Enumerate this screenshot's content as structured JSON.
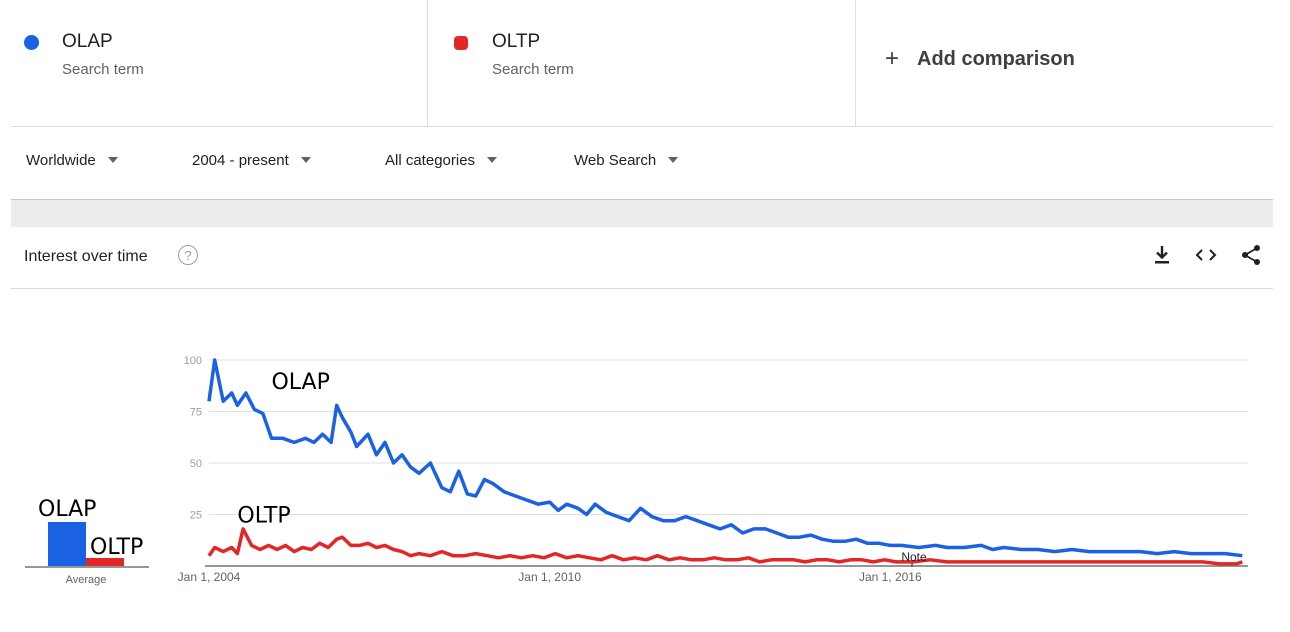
{
  "terms": [
    {
      "name": "OLAP",
      "sub": "Search term",
      "color": "#1a62e3"
    },
    {
      "name": "OLTP",
      "sub": "Search term",
      "color": "#e32626"
    }
  ],
  "add_comparison": "Add comparison",
  "filters": {
    "region": "Worldwide",
    "time": "2004 - present",
    "category": "All categories",
    "property": "Web Search"
  },
  "section": {
    "title": "Interest over time",
    "help_icon": "help-icon",
    "download_icon": "download-icon",
    "embed_icon": "embed-icon",
    "share_icon": "share-icon"
  },
  "averages": {
    "label": "Average",
    "olap_label": "OLAP",
    "oltp_label": "OLTP",
    "olap": 22,
    "oltp": 4
  },
  "chart_data": {
    "type": "line",
    "x_ticks": [
      "Jan 1, 2004",
      "Jan 1, 2010",
      "Jan 1, 2016"
    ],
    "y_ticks": [
      25,
      50,
      75,
      100
    ],
    "ylim": [
      0,
      100
    ],
    "xlim": [
      2004.0,
      2022.3
    ],
    "grid": true,
    "note": "Note",
    "annotations": [
      {
        "text": "OLAP",
        "x": 2005.1,
        "y": 86
      },
      {
        "text": "OLTP",
        "x": 2004.5,
        "y": 21
      }
    ],
    "series": [
      {
        "name": "OLAP",
        "color": "#1a62e3",
        "points": [
          [
            2004.0,
            80
          ],
          [
            2004.1,
            100
          ],
          [
            2004.25,
            80
          ],
          [
            2004.4,
            84
          ],
          [
            2004.5,
            78
          ],
          [
            2004.65,
            84
          ],
          [
            2004.8,
            76
          ],
          [
            2004.95,
            74
          ],
          [
            2005.1,
            62
          ],
          [
            2005.3,
            62
          ],
          [
            2005.5,
            60
          ],
          [
            2005.7,
            62
          ],
          [
            2005.85,
            60
          ],
          [
            2006.0,
            64
          ],
          [
            2006.15,
            60
          ],
          [
            2006.25,
            78
          ],
          [
            2006.35,
            72
          ],
          [
            2006.5,
            65
          ],
          [
            2006.6,
            58
          ],
          [
            2006.8,
            64
          ],
          [
            2006.95,
            54
          ],
          [
            2007.1,
            60
          ],
          [
            2007.25,
            50
          ],
          [
            2007.4,
            54
          ],
          [
            2007.55,
            48
          ],
          [
            2007.7,
            45
          ],
          [
            2007.9,
            50
          ],
          [
            2008.1,
            38
          ],
          [
            2008.25,
            36
          ],
          [
            2008.4,
            46
          ],
          [
            2008.55,
            35
          ],
          [
            2008.7,
            34
          ],
          [
            2008.85,
            42
          ],
          [
            2009.0,
            40
          ],
          [
            2009.2,
            36
          ],
          [
            2009.4,
            34
          ],
          [
            2009.6,
            32
          ],
          [
            2009.8,
            30
          ],
          [
            2010.0,
            31
          ],
          [
            2010.15,
            27
          ],
          [
            2010.3,
            30
          ],
          [
            2010.5,
            28
          ],
          [
            2010.65,
            25
          ],
          [
            2010.8,
            30
          ],
          [
            2011.0,
            26
          ],
          [
            2011.2,
            24
          ],
          [
            2011.4,
            22
          ],
          [
            2011.6,
            28
          ],
          [
            2011.8,
            24
          ],
          [
            2012.0,
            22
          ],
          [
            2012.2,
            22
          ],
          [
            2012.4,
            24
          ],
          [
            2012.6,
            22
          ],
          [
            2012.8,
            20
          ],
          [
            2013.0,
            18
          ],
          [
            2013.2,
            20
          ],
          [
            2013.4,
            16
          ],
          [
            2013.6,
            18
          ],
          [
            2013.8,
            18
          ],
          [
            2014.0,
            16
          ],
          [
            2014.2,
            14
          ],
          [
            2014.4,
            14
          ],
          [
            2014.6,
            15
          ],
          [
            2014.8,
            13
          ],
          [
            2015.0,
            12
          ],
          [
            2015.2,
            12
          ],
          [
            2015.4,
            13
          ],
          [
            2015.6,
            11
          ],
          [
            2015.8,
            11
          ],
          [
            2016.0,
            10
          ],
          [
            2016.2,
            10
          ],
          [
            2016.5,
            9
          ],
          [
            2016.8,
            10
          ],
          [
            2017.0,
            9
          ],
          [
            2017.3,
            9
          ],
          [
            2017.6,
            10
          ],
          [
            2017.8,
            8
          ],
          [
            2018.0,
            9
          ],
          [
            2018.3,
            8
          ],
          [
            2018.6,
            8
          ],
          [
            2018.9,
            7
          ],
          [
            2019.2,
            8
          ],
          [
            2019.5,
            7
          ],
          [
            2019.8,
            7
          ],
          [
            2020.1,
            7
          ],
          [
            2020.4,
            7
          ],
          [
            2020.7,
            6
          ],
          [
            2021.0,
            7
          ],
          [
            2021.3,
            6
          ],
          [
            2021.6,
            6
          ],
          [
            2021.9,
            6
          ],
          [
            2022.2,
            5
          ]
        ]
      },
      {
        "name": "OLTP",
        "color": "#e32626",
        "points": [
          [
            2004.0,
            5
          ],
          [
            2004.1,
            9
          ],
          [
            2004.25,
            7
          ],
          [
            2004.4,
            9
          ],
          [
            2004.5,
            6
          ],
          [
            2004.6,
            18
          ],
          [
            2004.75,
            10
          ],
          [
            2004.9,
            8
          ],
          [
            2005.05,
            10
          ],
          [
            2005.2,
            8
          ],
          [
            2005.35,
            10
          ],
          [
            2005.5,
            7
          ],
          [
            2005.65,
            9
          ],
          [
            2005.8,
            8
          ],
          [
            2005.95,
            11
          ],
          [
            2006.1,
            9
          ],
          [
            2006.25,
            13
          ],
          [
            2006.35,
            14
          ],
          [
            2006.5,
            10
          ],
          [
            2006.65,
            10
          ],
          [
            2006.8,
            11
          ],
          [
            2006.95,
            9
          ],
          [
            2007.1,
            10
          ],
          [
            2007.25,
            8
          ],
          [
            2007.4,
            7
          ],
          [
            2007.55,
            5
          ],
          [
            2007.7,
            6
          ],
          [
            2007.9,
            5
          ],
          [
            2008.1,
            7
          ],
          [
            2008.3,
            5
          ],
          [
            2008.5,
            5
          ],
          [
            2008.7,
            6
          ],
          [
            2008.9,
            5
          ],
          [
            2009.1,
            4
          ],
          [
            2009.3,
            5
          ],
          [
            2009.5,
            4
          ],
          [
            2009.7,
            5
          ],
          [
            2009.9,
            4
          ],
          [
            2010.1,
            6
          ],
          [
            2010.3,
            4
          ],
          [
            2010.5,
            5
          ],
          [
            2010.7,
            4
          ],
          [
            2010.9,
            3
          ],
          [
            2011.1,
            5
          ],
          [
            2011.3,
            3
          ],
          [
            2011.5,
            4
          ],
          [
            2011.7,
            3
          ],
          [
            2011.9,
            5
          ],
          [
            2012.1,
            3
          ],
          [
            2012.3,
            4
          ],
          [
            2012.5,
            3
          ],
          [
            2012.7,
            3
          ],
          [
            2012.9,
            4
          ],
          [
            2013.1,
            3
          ],
          [
            2013.3,
            3
          ],
          [
            2013.5,
            4
          ],
          [
            2013.7,
            2
          ],
          [
            2013.9,
            3
          ],
          [
            2014.1,
            3
          ],
          [
            2014.3,
            3
          ],
          [
            2014.5,
            2
          ],
          [
            2014.7,
            3
          ],
          [
            2014.9,
            3
          ],
          [
            2015.1,
            2
          ],
          [
            2015.3,
            3
          ],
          [
            2015.5,
            3
          ],
          [
            2015.7,
            2
          ],
          [
            2015.9,
            3
          ],
          [
            2016.1,
            2
          ],
          [
            2016.4,
            2
          ],
          [
            2016.7,
            3
          ],
          [
            2017.0,
            2
          ],
          [
            2017.3,
            2
          ],
          [
            2017.6,
            2
          ],
          [
            2017.9,
            2
          ],
          [
            2018.2,
            2
          ],
          [
            2018.5,
            2
          ],
          [
            2018.8,
            2
          ],
          [
            2019.1,
            2
          ],
          [
            2019.4,
            2
          ],
          [
            2019.7,
            2
          ],
          [
            2020.0,
            2
          ],
          [
            2020.3,
            2
          ],
          [
            2020.6,
            2
          ],
          [
            2020.9,
            2
          ],
          [
            2021.2,
            2
          ],
          [
            2021.5,
            2
          ],
          [
            2021.8,
            1
          ],
          [
            2022.1,
            1
          ],
          [
            2022.2,
            2
          ]
        ]
      }
    ]
  }
}
